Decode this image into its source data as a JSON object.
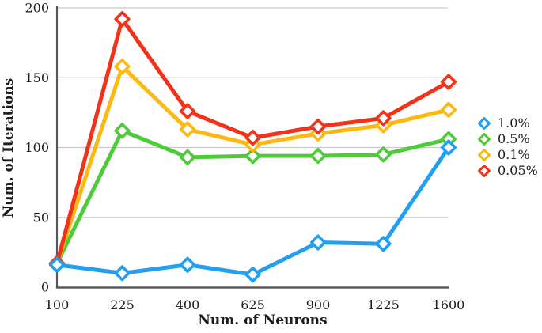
{
  "chart_data": {
    "type": "line",
    "title": "",
    "xlabel": "Num. of Neurons",
    "ylabel": "Num. of Iterations",
    "x_values": [
      100,
      225,
      400,
      625,
      900,
      1225,
      1600
    ],
    "x_tick_labels": [
      "100",
      "225",
      "400",
      "625",
      "900",
      "1225",
      "1600"
    ],
    "y_tick_values": [
      0,
      50,
      100,
      150,
      200
    ],
    "y_tick_labels": [
      "0",
      "50",
      "100",
      "150",
      "200"
    ],
    "ylim": [
      0,
      200
    ],
    "grid": "horizontal",
    "legend_position": "right",
    "marker_style": "open-diamond",
    "series": [
      {
        "name": "1.0%",
        "color": "#219ff3",
        "values": [
          16,
          10,
          16,
          9,
          32,
          31,
          100
        ]
      },
      {
        "name": "0.5%",
        "color": "#4fca3a",
        "values": [
          17,
          112,
          93,
          94,
          94,
          95,
          106
        ]
      },
      {
        "name": "0.1%",
        "color": "#fdb913",
        "values": [
          17,
          158,
          113,
          102,
          110,
          116,
          127
        ]
      },
      {
        "name": "0.05%",
        "color": "#f23219",
        "values": [
          17,
          192,
          126,
          107,
          115,
          121,
          147
        ]
      }
    ],
    "draw_order": [
      1,
      2,
      3,
      0
    ],
    "colors": {
      "gridline": "#c9c9c9",
      "axis": "#58595b",
      "text": "#1c1c1c",
      "marker_fill": "#ffffff"
    }
  }
}
